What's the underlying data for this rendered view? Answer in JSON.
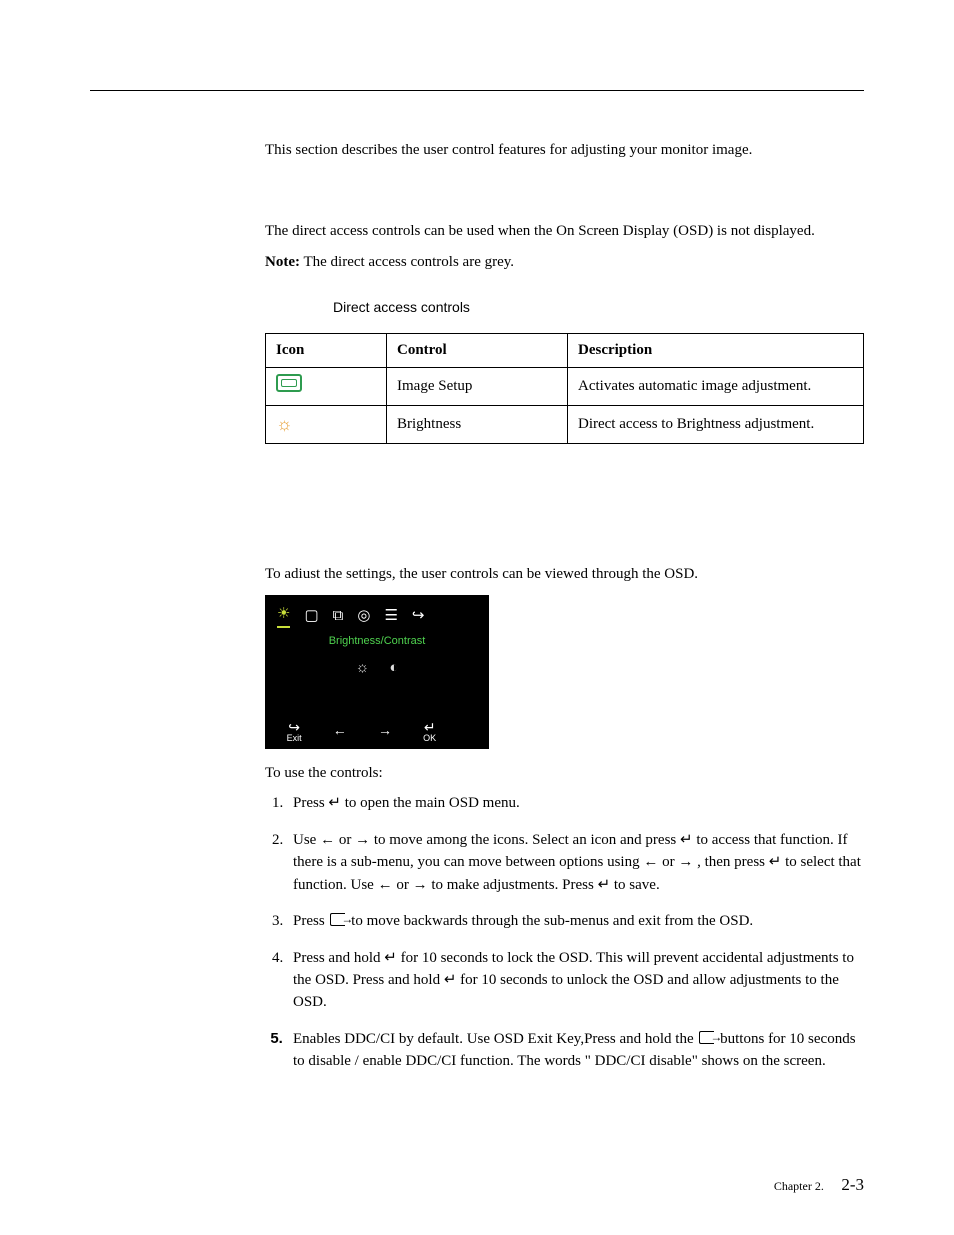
{
  "intro": "This section describes the user control features for adjusting your monitor image.",
  "direct_access": {
    "p1": "The direct access controls can be used when the On Screen Display (OSD) is not displayed.",
    "note_label": "Note:",
    "note_text": " The direct access controls are grey.",
    "caption": "Direct access controls",
    "headers": {
      "icon": "Icon",
      "control": "Control",
      "description": "Description"
    },
    "rows": [
      {
        "icon": "image-setup-icon",
        "control": "Image Setup",
        "description": "Activates automatic image adjustment."
      },
      {
        "icon": "brightness-icon",
        "control": "Brightness",
        "description": "Direct access to Brightness adjustment."
      }
    ]
  },
  "osd": {
    "intro": "To adiust the settings, the user controls can be viewed through the OSD.",
    "title": "Brightness/Contrast",
    "exit_label": "Exit",
    "ok_label": "OK",
    "use_controls": "To use the controls:",
    "steps": {
      "s1a": "Press ",
      "s1b": " to open the main OSD menu.",
      "s2a": "Use ",
      "s2b": " or ",
      "s2c": " to move among the icons. Select an icon and press  ",
      "s2d": " to access that function. If there is a sub-menu, you can move between options using ",
      "s2e": " or ",
      "s2f": " , then press  ",
      "s2g": " to select that function. Use ",
      "s2h": " or ",
      "s2i": " to make adjustments. Press ",
      "s2j": "  to save.",
      "s3a": "Press ",
      "s3b": "   to move backwards through the sub-menus and exit from the OSD.",
      "s4a": "Press and hold  ",
      "s4b": "  for 10 seconds to lock the OSD. This will prevent accidental adjustments to the OSD. Press and hold ",
      "s4c": "  for 10  seconds to unlock the OSD and allow adjustments to the OSD.",
      "s5a": "Enables DDC/CI by default. Use OSD Exit Key,Press and hold the  ",
      "s5b": "  buttons  for 10 seconds to disable / enable DDC/CI function. The words \" DDC/CI disable\" shows on the screen."
    }
  },
  "glyphs": {
    "enter": "↵",
    "left": "←",
    "right": "→"
  },
  "footer": {
    "chapter": "Chapter 2.",
    "page": "2-3"
  },
  "colors": {
    "brightness_icon": "#e8a33d",
    "image_setup_icon": "#2e9b4f",
    "osd_highlight": "#c9df3a",
    "osd_title": "#4fd24f"
  }
}
